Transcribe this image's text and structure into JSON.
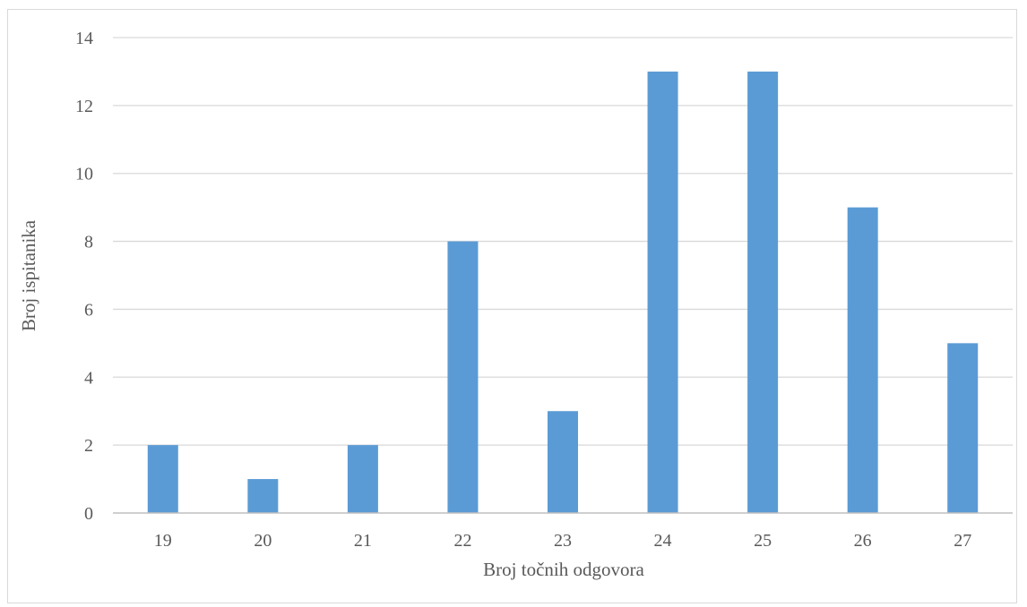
{
  "chart_data": {
    "type": "bar",
    "title": "",
    "xlabel": "Broj točnih odgovora",
    "ylabel": "Broj ispitanika",
    "categories": [
      "19",
      "20",
      "21",
      "22",
      "23",
      "24",
      "25",
      "26",
      "27"
    ],
    "values": [
      2,
      1,
      2,
      8,
      3,
      13,
      13,
      9,
      5
    ],
    "ylim": [
      0,
      14
    ],
    "yticks": [
      0,
      2,
      4,
      6,
      8,
      10,
      12,
      14
    ],
    "grid": true,
    "legend": "none",
    "colors": {
      "bar": "#5b9bd5",
      "grid": "#d9d9d9",
      "axis": "#bfbfbf",
      "text": "#595959"
    }
  }
}
